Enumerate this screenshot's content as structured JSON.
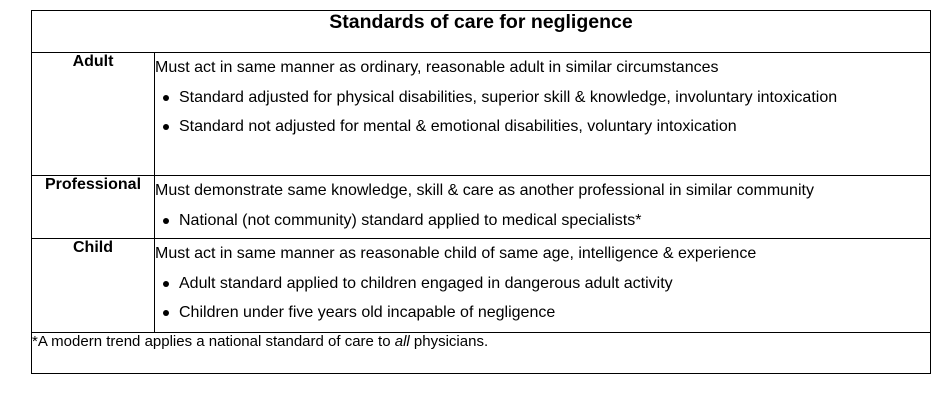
{
  "title": "Standards of care for negligence",
  "rows": [
    {
      "label": "Adult",
      "main": "Must act in same manner as ordinary, reasonable adult in similar circumstances",
      "bullets": [
        "Standard adjusted for physical disabilities, superior skill & knowledge, involuntary intoxication",
        "Standard not adjusted for mental & emotional disabilities, voluntary intoxication"
      ]
    },
    {
      "label": "Professional",
      "main": "Must demonstrate same knowledge, skill & care as another professional in similar community",
      "bullets": [
        "National (not community) standard applied to medical specialists*"
      ]
    },
    {
      "label": "Child",
      "main": "Must act in same manner as reasonable child of same age, intelligence & experience",
      "bullets": [
        "Adult standard applied to children engaged in dangerous adult activity",
        "Children under five years old incapable of negligence"
      ]
    }
  ],
  "footnote": {
    "before": "*A modern trend applies a national standard of care to ",
    "emphasis": "all",
    "after": " physicians."
  }
}
